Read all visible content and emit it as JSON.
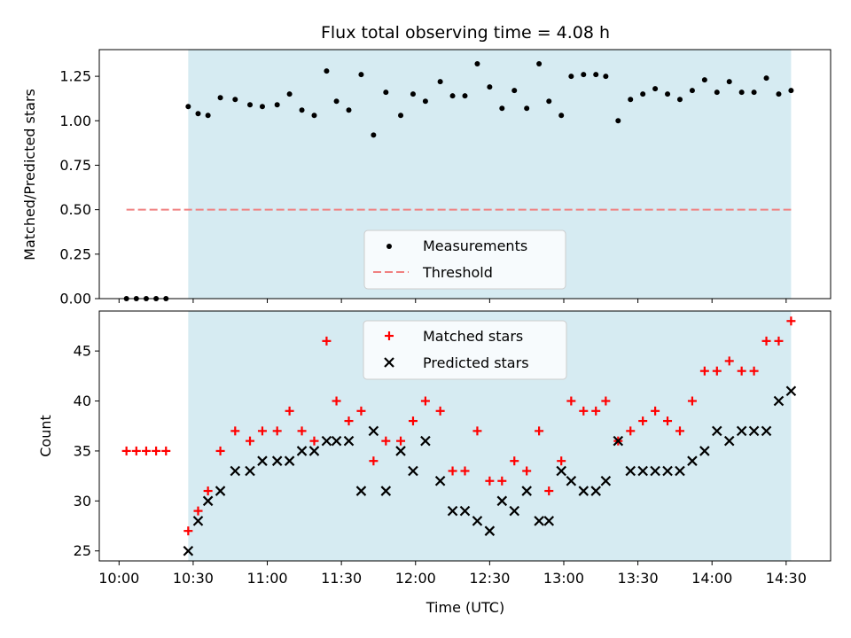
{
  "figure": {
    "title": "Flux total observing time = 4.08 h"
  },
  "chart_data": [
    {
      "type": "scatter",
      "ylabel": "Matched/Predicted stars",
      "xlabel": "",
      "xlim": [
        "09:52",
        "14:48"
      ],
      "ylim": [
        0.0,
        1.4
      ],
      "yticks": [
        "0.00",
        "0.25",
        "0.50",
        "0.75",
        "1.00",
        "1.25"
      ],
      "shaded_span": [
        "10:28",
        "14:32"
      ],
      "shade_color": "#add8e6",
      "threshold": {
        "y": 0.5,
        "x_range": [
          "10:03",
          "14:32"
        ],
        "color": "#f08080",
        "style": "dashed"
      },
      "legend": {
        "position": "lower-center",
        "entries": [
          {
            "label": "Measurements",
            "marker": "dot",
            "color": "#000000"
          },
          {
            "label": "Threshold",
            "marker": "dashed-line",
            "color": "#f08080"
          }
        ]
      },
      "series": [
        {
          "name": "Measurements",
          "color": "#000000",
          "x": [
            "10:03",
            "10:07",
            "10:11",
            "10:15",
            "10:19",
            "10:28",
            "10:32",
            "10:36",
            "10:41",
            "10:47",
            "10:53",
            "10:58",
            "11:04",
            "11:09",
            "11:14",
            "11:19",
            "11:24",
            "11:28",
            "11:33",
            "11:38",
            "11:43",
            "11:48",
            "11:54",
            "11:59",
            "12:04",
            "12:10",
            "12:15",
            "12:20",
            "12:25",
            "12:30",
            "12:35",
            "12:40",
            "12:45",
            "12:50",
            "12:54",
            "12:59",
            "13:03",
            "13:08",
            "13:13",
            "13:17",
            "13:22",
            "13:27",
            "13:32",
            "13:37",
            "13:42",
            "13:47",
            "13:52",
            "13:57",
            "14:02",
            "14:07",
            "14:12",
            "14:17",
            "14:22",
            "14:27",
            "14:32"
          ],
          "y": [
            0.0,
            0.0,
            0.0,
            0.0,
            0.0,
            1.08,
            1.04,
            1.03,
            1.13,
            1.12,
            1.09,
            1.08,
            1.09,
            1.15,
            1.06,
            1.03,
            1.28,
            1.11,
            1.06,
            1.26,
            0.92,
            1.16,
            1.03,
            1.15,
            1.11,
            1.22,
            1.14,
            1.14,
            1.32,
            1.19,
            1.07,
            1.17,
            1.07,
            1.32,
            1.11,
            1.03,
            1.25,
            1.26,
            1.26,
            1.25,
            1.0,
            1.12,
            1.15,
            1.18,
            1.15,
            1.12,
            1.17,
            1.23,
            1.16,
            1.22,
            1.16,
            1.16,
            1.24,
            1.15,
            1.17
          ]
        }
      ]
    },
    {
      "type": "scatter",
      "ylabel": "Count",
      "xlabel": "Time (UTC)",
      "xlim": [
        "09:52",
        "14:48"
      ],
      "ylim": [
        24,
        49
      ],
      "yticks": [
        "25",
        "30",
        "35",
        "40",
        "45"
      ],
      "xticks": [
        "10:00",
        "10:30",
        "11:00",
        "11:30",
        "12:00",
        "12:30",
        "13:00",
        "13:30",
        "14:00",
        "14:30"
      ],
      "shaded_span": [
        "10:28",
        "14:32"
      ],
      "shade_color": "#add8e6",
      "legend": {
        "position": "upper-center",
        "entries": [
          {
            "label": "Matched stars",
            "marker": "plus",
            "color": "#ff0000"
          },
          {
            "label": "Predicted stars",
            "marker": "x",
            "color": "#000000"
          }
        ]
      },
      "series": [
        {
          "name": "Matched stars",
          "marker": "plus",
          "color": "#ff0000",
          "x": [
            "10:03",
            "10:07",
            "10:11",
            "10:15",
            "10:19",
            "10:28",
            "10:32",
            "10:36",
            "10:41",
            "10:47",
            "10:53",
            "10:58",
            "11:04",
            "11:09",
            "11:14",
            "11:19",
            "11:24",
            "11:28",
            "11:33",
            "11:38",
            "11:43",
            "11:48",
            "11:54",
            "11:59",
            "12:04",
            "12:10",
            "12:15",
            "12:20",
            "12:25",
            "12:30",
            "12:35",
            "12:40",
            "12:45",
            "12:50",
            "12:54",
            "12:59",
            "13:03",
            "13:08",
            "13:13",
            "13:17",
            "13:22",
            "13:27",
            "13:32",
            "13:37",
            "13:42",
            "13:47",
            "13:52",
            "13:57",
            "14:02",
            "14:07",
            "14:12",
            "14:17",
            "14:22",
            "14:27",
            "14:32"
          ],
          "y": [
            35,
            35,
            35,
            35,
            35,
            27,
            29,
            31,
            35,
            37,
            36,
            37,
            37,
            39,
            37,
            36,
            46,
            40,
            38,
            39,
            34,
            36,
            36,
            38,
            40,
            39,
            33,
            33,
            37,
            32,
            32,
            34,
            33,
            37,
            31,
            34,
            40,
            39,
            39,
            40,
            36,
            37,
            38,
            39,
            38,
            37,
            40,
            43,
            43,
            44,
            43,
            43,
            46,
            46,
            48
          ]
        },
        {
          "name": "Predicted stars",
          "marker": "x",
          "color": "#000000",
          "x": [
            "10:28",
            "10:32",
            "10:36",
            "10:41",
            "10:47",
            "10:53",
            "10:58",
            "11:04",
            "11:09",
            "11:14",
            "11:19",
            "11:24",
            "11:28",
            "11:33",
            "11:38",
            "11:43",
            "11:48",
            "11:54",
            "11:59",
            "12:04",
            "12:10",
            "12:15",
            "12:20",
            "12:25",
            "12:30",
            "12:35",
            "12:40",
            "12:45",
            "12:50",
            "12:54",
            "12:59",
            "13:03",
            "13:08",
            "13:13",
            "13:17",
            "13:22",
            "13:27",
            "13:32",
            "13:37",
            "13:42",
            "13:47",
            "13:52",
            "13:57",
            "14:02",
            "14:07",
            "14:12",
            "14:17",
            "14:22",
            "14:27",
            "14:32"
          ],
          "y": [
            25,
            28,
            30,
            31,
            33,
            33,
            34,
            34,
            34,
            35,
            35,
            36,
            36,
            36,
            31,
            37,
            31,
            35,
            33,
            36,
            32,
            29,
            29,
            28,
            27,
            30,
            29,
            31,
            28,
            28,
            33,
            32,
            31,
            31,
            32,
            36,
            33,
            33,
            33,
            33,
            33,
            34,
            35,
            37,
            36,
            37,
            37,
            37,
            40,
            41
          ]
        }
      ]
    }
  ]
}
